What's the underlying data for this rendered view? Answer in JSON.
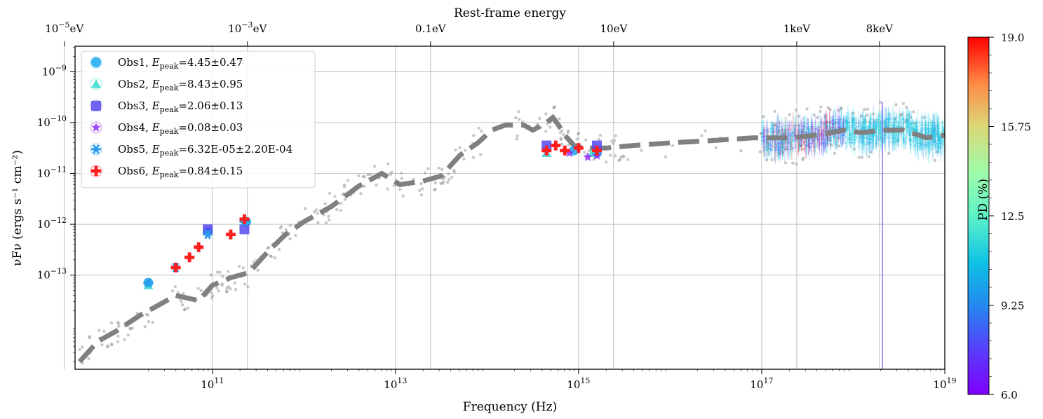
{
  "chart_data": {
    "type": "scatter",
    "title": "Rest-frame energy",
    "xlabel": "Frequency (Hz)",
    "ylabel": "νFν (ergs s⁻¹ cm⁻²)",
    "xscale": "log",
    "yscale": "log",
    "xlim_log10": [
      9.5,
      19
    ],
    "ylim_log10": [
      -14.85,
      -8.5
    ],
    "x_ticks": [
      {
        "log": 11,
        "label": "10",
        "exp": "11"
      },
      {
        "log": 13,
        "label": "10",
        "exp": "13"
      },
      {
        "log": 15,
        "label": "10",
        "exp": "15"
      },
      {
        "log": 17,
        "label": "10",
        "exp": "17"
      },
      {
        "log": 19,
        "label": "10",
        "exp": "19"
      }
    ],
    "y_ticks": [
      {
        "log": -9,
        "label": "10",
        "exp": "−9"
      },
      {
        "log": -10,
        "label": "10",
        "exp": "−10"
      },
      {
        "log": -11,
        "label": "10",
        "exp": "−11"
      },
      {
        "log": -12,
        "label": "10",
        "exp": "−12"
      },
      {
        "log": -13,
        "label": "10",
        "exp": "−13"
      }
    ],
    "top_ticks": [
      {
        "log": 9.383,
        "label": "10",
        "exp": "−5",
        "suffix": "eV"
      },
      {
        "log": 11.383,
        "label": "10",
        "exp": "−3",
        "suffix": "eV"
      },
      {
        "log": 13.383,
        "label": "0.1eV",
        "exp": "",
        "suffix": ""
      },
      {
        "log": 15.383,
        "label": "10eV",
        "exp": "",
        "suffix": ""
      },
      {
        "log": 17.383,
        "label": "1keV",
        "exp": "",
        "suffix": ""
      },
      {
        "log": 18.286,
        "label": "8keV",
        "exp": "",
        "suffix": ""
      }
    ],
    "legend": [
      {
        "name": "Obs1",
        "epeak": "4.45±0.47",
        "marker": "circle-plus",
        "color": "#0aa2ee"
      },
      {
        "name": "Obs2",
        "epeak": "8.43±0.95",
        "marker": "triangle",
        "color": "#2ad7d0"
      },
      {
        "name": "Obs3",
        "epeak": "2.06±0.13",
        "marker": "square",
        "color": "#5548f0"
      },
      {
        "name": "Obs4",
        "epeak": "0.08±0.03",
        "marker": "star",
        "color": "#8f2bf6"
      },
      {
        "name": "Obs5",
        "epeak": "6.32E-05±2.20E-04",
        "marker": "snowflake",
        "color": "#2a9cef"
      },
      {
        "name": "Obs6",
        "epeak": "0.84±0.15",
        "marker": "plus",
        "color": "#ff1e1e"
      }
    ],
    "model_curve": {
      "name": "SED model",
      "x_log": [
        9.55,
        9.75,
        9.95,
        10.2,
        10.4,
        10.6,
        10.85,
        10.95,
        11.0,
        11.2,
        11.4,
        11.6,
        11.8,
        12.0,
        12.3,
        12.6,
        12.85,
        13.05,
        13.3,
        13.5,
        13.7,
        13.9,
        14.05,
        14.2,
        14.4,
        14.5,
        14.65,
        14.72,
        14.78,
        14.85,
        14.95,
        15.05,
        15.3,
        15.6,
        16.0,
        16.5,
        16.9,
        17.1,
        17.3,
        17.6,
        17.9,
        18.1,
        18.3,
        18.55,
        18.8,
        19.0
      ],
      "y_log": [
        -14.7,
        -14.3,
        -14.1,
        -13.8,
        -13.6,
        -13.4,
        -13.5,
        -13.3,
        -13.2,
        -13.05,
        -12.95,
        -12.55,
        -12.2,
        -11.95,
        -11.65,
        -11.25,
        -11.0,
        -11.22,
        -11.15,
        -11.05,
        -10.65,
        -10.4,
        -10.15,
        -10.05,
        -10.05,
        -10.15,
        -10.0,
        -9.9,
        -10.05,
        -10.25,
        -10.45,
        -10.5,
        -10.5,
        -10.45,
        -10.4,
        -10.35,
        -10.3,
        -10.3,
        -10.3,
        -10.25,
        -10.15,
        -10.2,
        -10.15,
        -10.15,
        -10.3,
        -10.25
      ]
    },
    "series": [
      {
        "name": "Obs1",
        "x_log": [
          10.3,
          10.95,
          11.37,
          14.95,
          15.2
        ],
        "y_log": [
          -13.15,
          -12.15,
          -11.95,
          -10.55,
          -10.6
        ]
      },
      {
        "name": "Obs2",
        "x_log": [
          10.3,
          14.65,
          15.15
        ],
        "y_log": [
          -13.2,
          -10.6,
          -10.6
        ]
      },
      {
        "name": "Obs3",
        "x_log": [
          10.95,
          11.35,
          14.65,
          15.2
        ],
        "y_log": [
          -12.1,
          -12.1,
          -10.45,
          -10.45
        ]
      },
      {
        "name": "Obs4",
        "x_log": [
          14.9,
          15.1,
          15.2
        ],
        "y_log": [
          -10.6,
          -10.68,
          -10.65
        ]
      },
      {
        "name": "Obs5",
        "x_log": [
          10.3,
          10.6,
          10.95,
          11.35
        ],
        "y_log": [
          -13.15,
          -12.85,
          -12.2,
          -11.95
        ]
      },
      {
        "name": "Obs6",
        "x_log": [
          10.6,
          10.75,
          10.85,
          11.2,
          11.35,
          14.65,
          14.75,
          14.85,
          15.0,
          15.2
        ],
        "y_log": [
          -12.85,
          -12.65,
          -12.45,
          -12.2,
          -11.9,
          -10.55,
          -10.45,
          -10.55,
          -10.5,
          -10.55
        ]
      }
    ],
    "colorbar": {
      "label": "PD (%)",
      "min": 6.0,
      "max": 19.0,
      "tick_labels": [
        "19.0",
        "15.75",
        "12.5",
        "9.25",
        "6.0"
      ],
      "tick_values": [
        19.0,
        15.75,
        12.5,
        9.25,
        6.0
      ]
    },
    "grid": true,
    "legend_position": "upper left"
  }
}
